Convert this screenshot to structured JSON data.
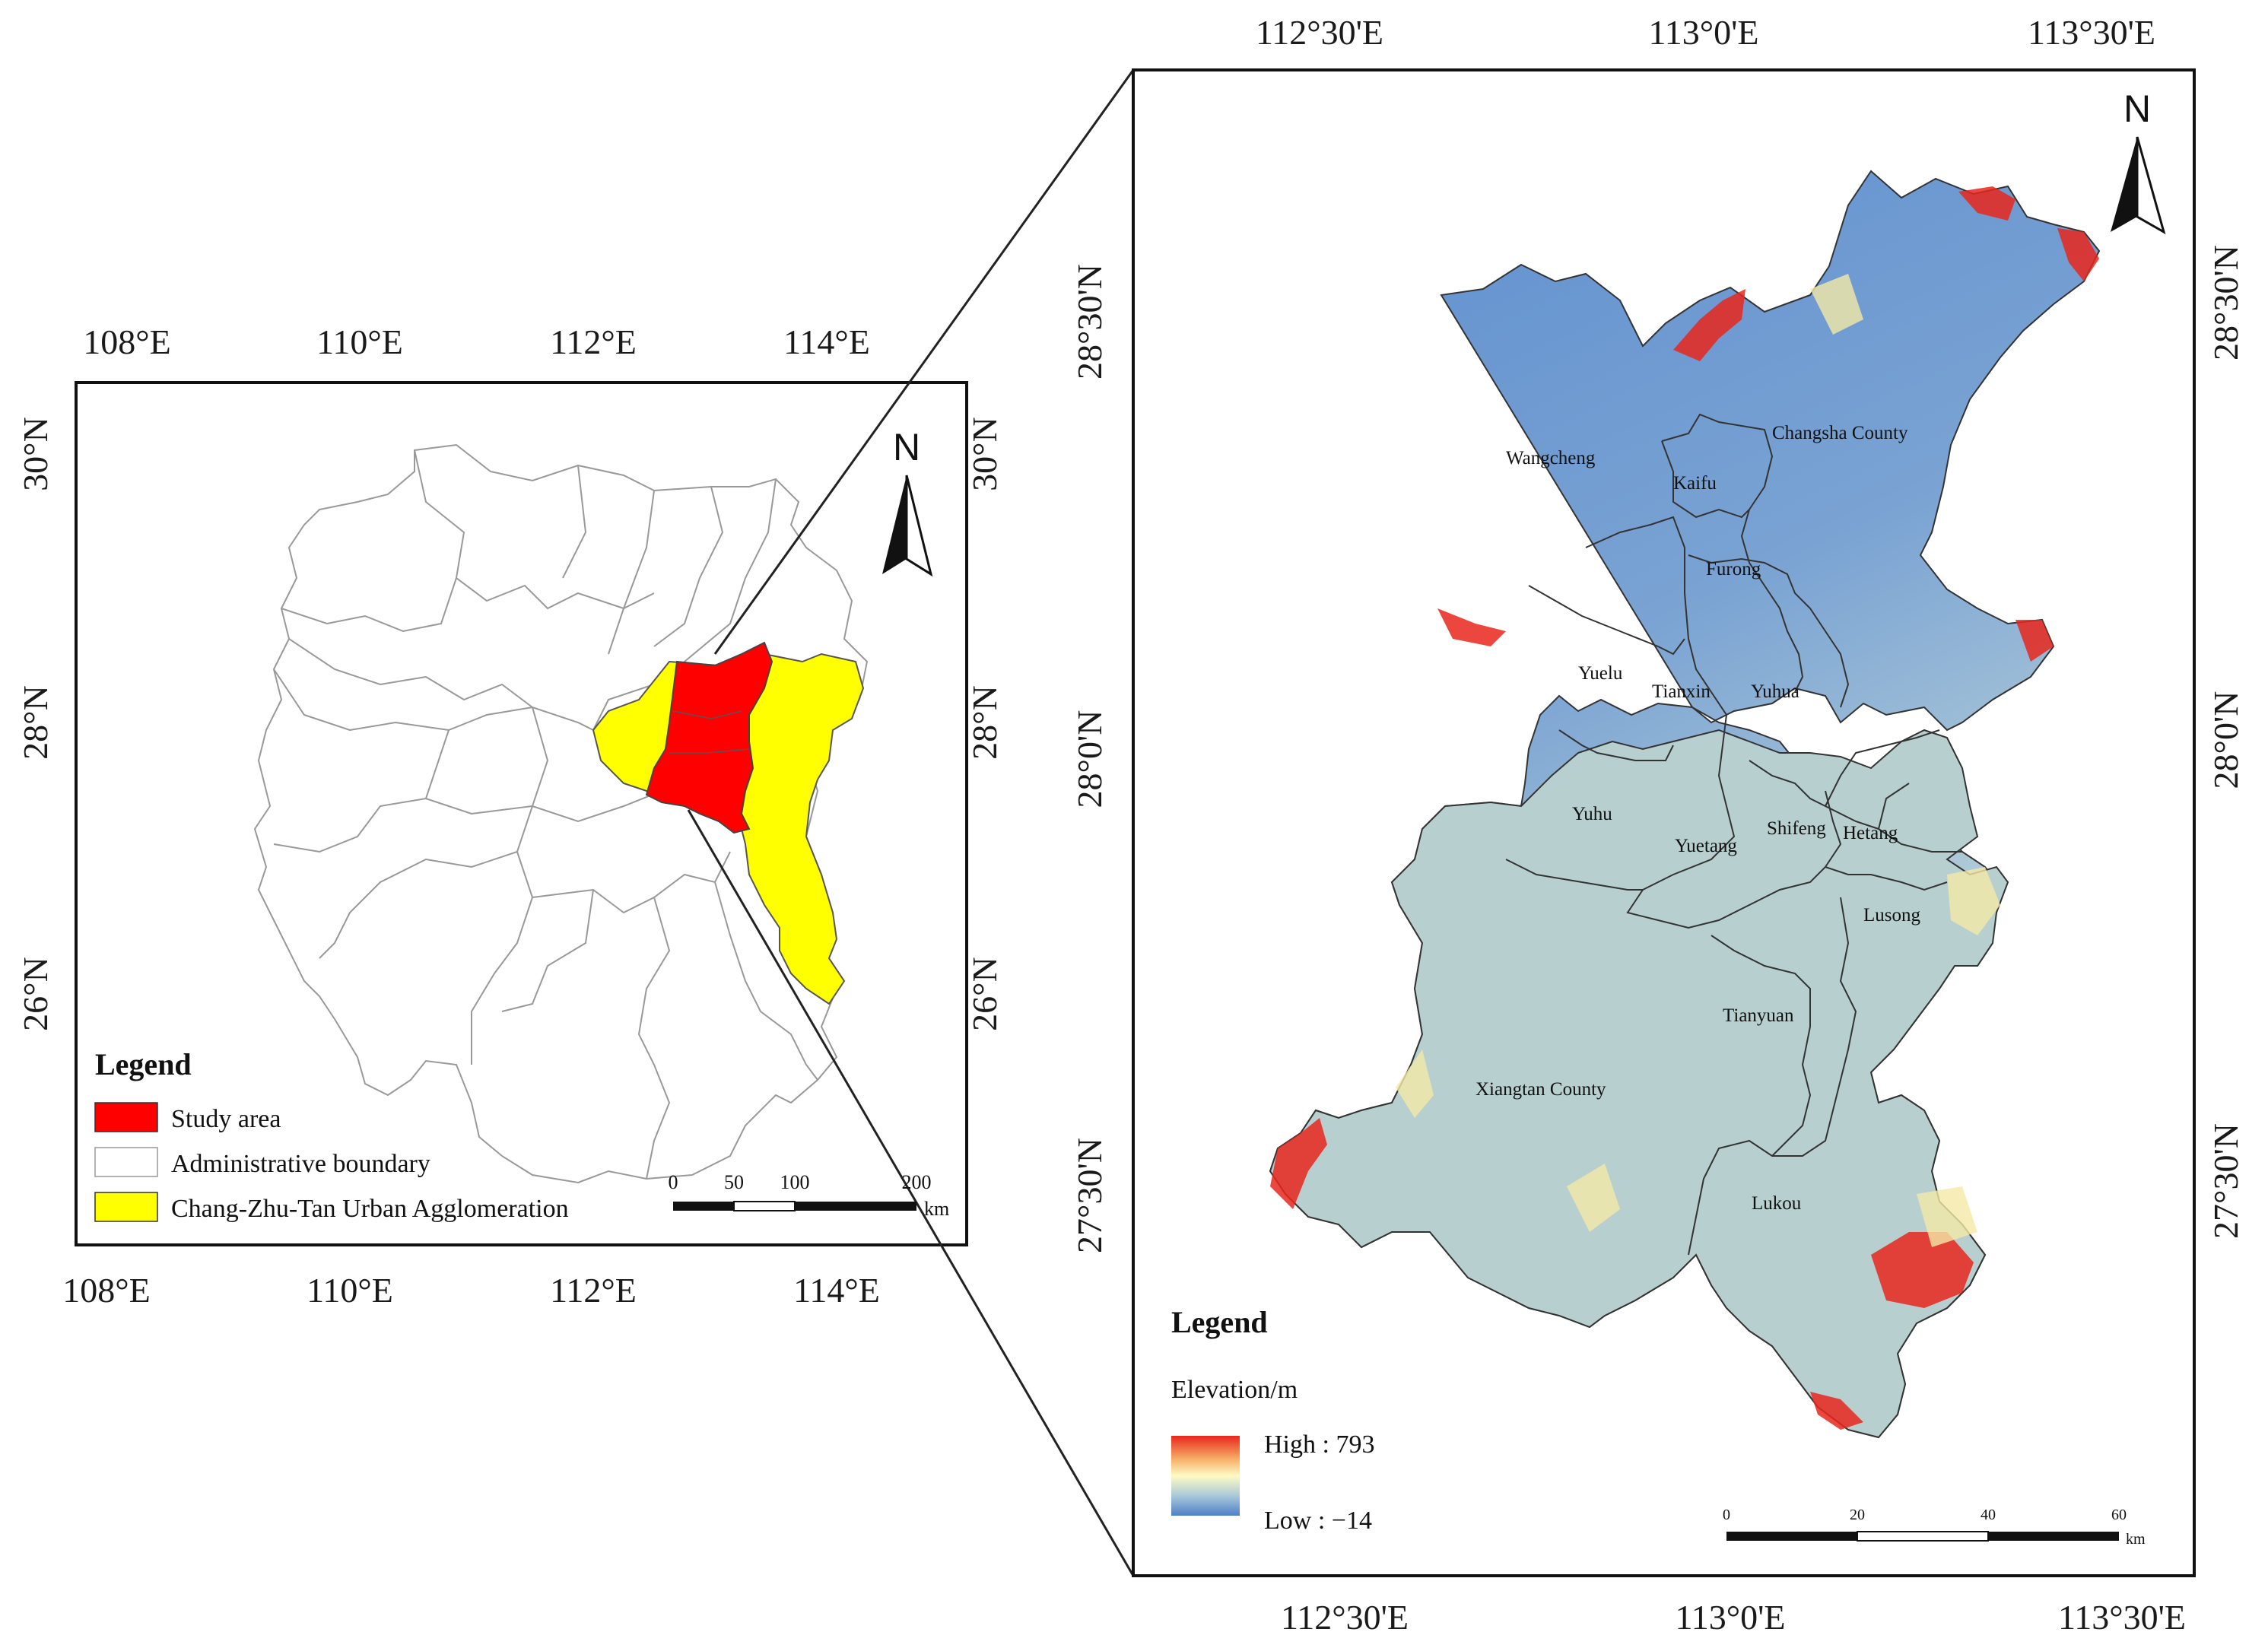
{
  "left_map": {
    "top_ticks": [
      "108°E",
      "110°E",
      "112°E",
      "114°E"
    ],
    "bottom_ticks": [
      "108°E",
      "110°E",
      "112°E",
      "114°E"
    ],
    "left_ticks": [
      "30°N",
      "28°N",
      "26°N"
    ],
    "right_ticks": [
      "30°N",
      "28°N",
      "26°N"
    ],
    "north_label": "N",
    "legend": {
      "title": "Legend",
      "items": [
        {
          "label": "Study area",
          "color": "#ff0000"
        },
        {
          "label": "Administrative boundary",
          "color": "#ffffff"
        },
        {
          "label": "Chang-Zhu-Tan Urban Agglomeration",
          "color": "#ffff00"
        }
      ]
    },
    "scale_bar": {
      "labels": [
        "0",
        "50",
        "100",
        "200"
      ],
      "unit": "km"
    }
  },
  "right_map": {
    "top_ticks": [
      "112°30'E",
      "113°0'E",
      "113°30'E"
    ],
    "bottom_ticks": [
      "112°30'E",
      "113°0'E",
      "113°30'E"
    ],
    "left_ticks": [
      "28°30'N",
      "28°0'N",
      "27°30'N"
    ],
    "right_ticks": [
      "28°30'N",
      "28°0'N",
      "27°30'N"
    ],
    "north_label": "N",
    "districts": {
      "wangcheng": "Wangcheng",
      "kaifu": "Kaifu",
      "changsha_county": "Changsha County",
      "furong": "Furong",
      "yuelu": "Yuelu",
      "tianxin": "Tianxin",
      "yuhua": "Yuhua",
      "yuhu": "Yuhu",
      "yuetang": "Yuetang",
      "shifeng": "Shifeng",
      "hetang": "Hetang",
      "lusong": "Lusong",
      "tianyuan": "Tianyuan",
      "xiangtan_county": "Xiangtan County",
      "lukou": "Lukou"
    },
    "legend": {
      "title": "Legend",
      "subtitle": "Elevation/m",
      "high": "High : 793",
      "low": "Low : −14",
      "high_value": 793,
      "low_value": -14,
      "ramp_colors": [
        "#e8271c",
        "#f7b26b",
        "#fffbc4",
        "#a9c9d9",
        "#4f7fc8"
      ]
    },
    "scale_bar": {
      "labels": [
        "0",
        "20",
        "40",
        "60"
      ],
      "unit": "km"
    }
  }
}
